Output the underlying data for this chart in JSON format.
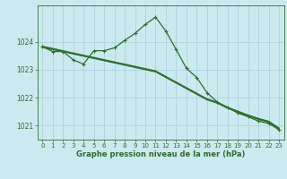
{
  "background_color": "#cce9f0",
  "grid_color": "#aad4dc",
  "line_color": "#2d6e2d",
  "text_color": "#2d6e2d",
  "xlabel": "Graphe pression niveau de la mer (hPa)",
  "ylim": [
    1020.5,
    1025.3
  ],
  "yticks": [
    1021,
    1022,
    1023,
    1024
  ],
  "xticks": [
    0,
    1,
    2,
    3,
    4,
    5,
    6,
    7,
    8,
    9,
    10,
    11,
    12,
    13,
    14,
    15,
    16,
    17,
    18,
    19,
    20,
    21,
    22,
    23
  ],
  "xlim": [
    -0.5,
    23.5
  ],
  "series_straight": [
    {
      "x": [
        0,
        1,
        2,
        3,
        4,
        5,
        6,
        7,
        8,
        9,
        10,
        11,
        12,
        13,
        14,
        15,
        16,
        17,
        18,
        19,
        20,
        21,
        22,
        23
      ],
      "y": [
        1023.8,
        1023.72,
        1023.64,
        1023.56,
        1023.48,
        1023.4,
        1023.32,
        1023.24,
        1023.16,
        1023.08,
        1023.0,
        1022.92,
        1022.72,
        1022.52,
        1022.32,
        1022.12,
        1021.92,
        1021.8,
        1021.62,
        1021.48,
        1021.34,
        1021.22,
        1021.12,
        1020.88
      ]
    },
    {
      "x": [
        0,
        1,
        2,
        3,
        4,
        5,
        6,
        7,
        8,
        9,
        10,
        11,
        12,
        13,
        14,
        15,
        16,
        17,
        18,
        19,
        20,
        21,
        22,
        23
      ],
      "y": [
        1023.82,
        1023.74,
        1023.66,
        1023.58,
        1023.5,
        1023.42,
        1023.34,
        1023.26,
        1023.18,
        1023.1,
        1023.02,
        1022.94,
        1022.74,
        1022.54,
        1022.34,
        1022.14,
        1021.94,
        1021.82,
        1021.64,
        1021.5,
        1021.36,
        1021.24,
        1021.14,
        1020.9
      ]
    },
    {
      "x": [
        0,
        1,
        2,
        3,
        4,
        5,
        6,
        7,
        8,
        9,
        10,
        11,
        12,
        13,
        14,
        15,
        16,
        17,
        18,
        19,
        20,
        21,
        22,
        23
      ],
      "y": [
        1023.84,
        1023.76,
        1023.68,
        1023.6,
        1023.52,
        1023.44,
        1023.36,
        1023.28,
        1023.2,
        1023.12,
        1023.04,
        1022.96,
        1022.76,
        1022.56,
        1022.36,
        1022.16,
        1021.96,
        1021.84,
        1021.66,
        1021.52,
        1021.38,
        1021.26,
        1021.16,
        1020.92
      ]
    }
  ],
  "series_main": {
    "x": [
      0,
      1,
      2,
      3,
      4,
      5,
      6,
      7,
      8,
      9,
      10,
      11,
      12,
      13,
      14,
      15,
      16,
      17,
      18,
      19,
      20,
      21,
      22,
      23
    ],
    "y": [
      1023.82,
      1023.65,
      1023.65,
      1023.35,
      1023.2,
      1023.68,
      1023.68,
      1023.78,
      1024.05,
      1024.3,
      1024.62,
      1024.88,
      1024.38,
      1023.72,
      1023.05,
      1022.72,
      1022.18,
      1021.84,
      1021.65,
      1021.45,
      1021.32,
      1021.16,
      1021.08,
      1020.85
    ]
  }
}
